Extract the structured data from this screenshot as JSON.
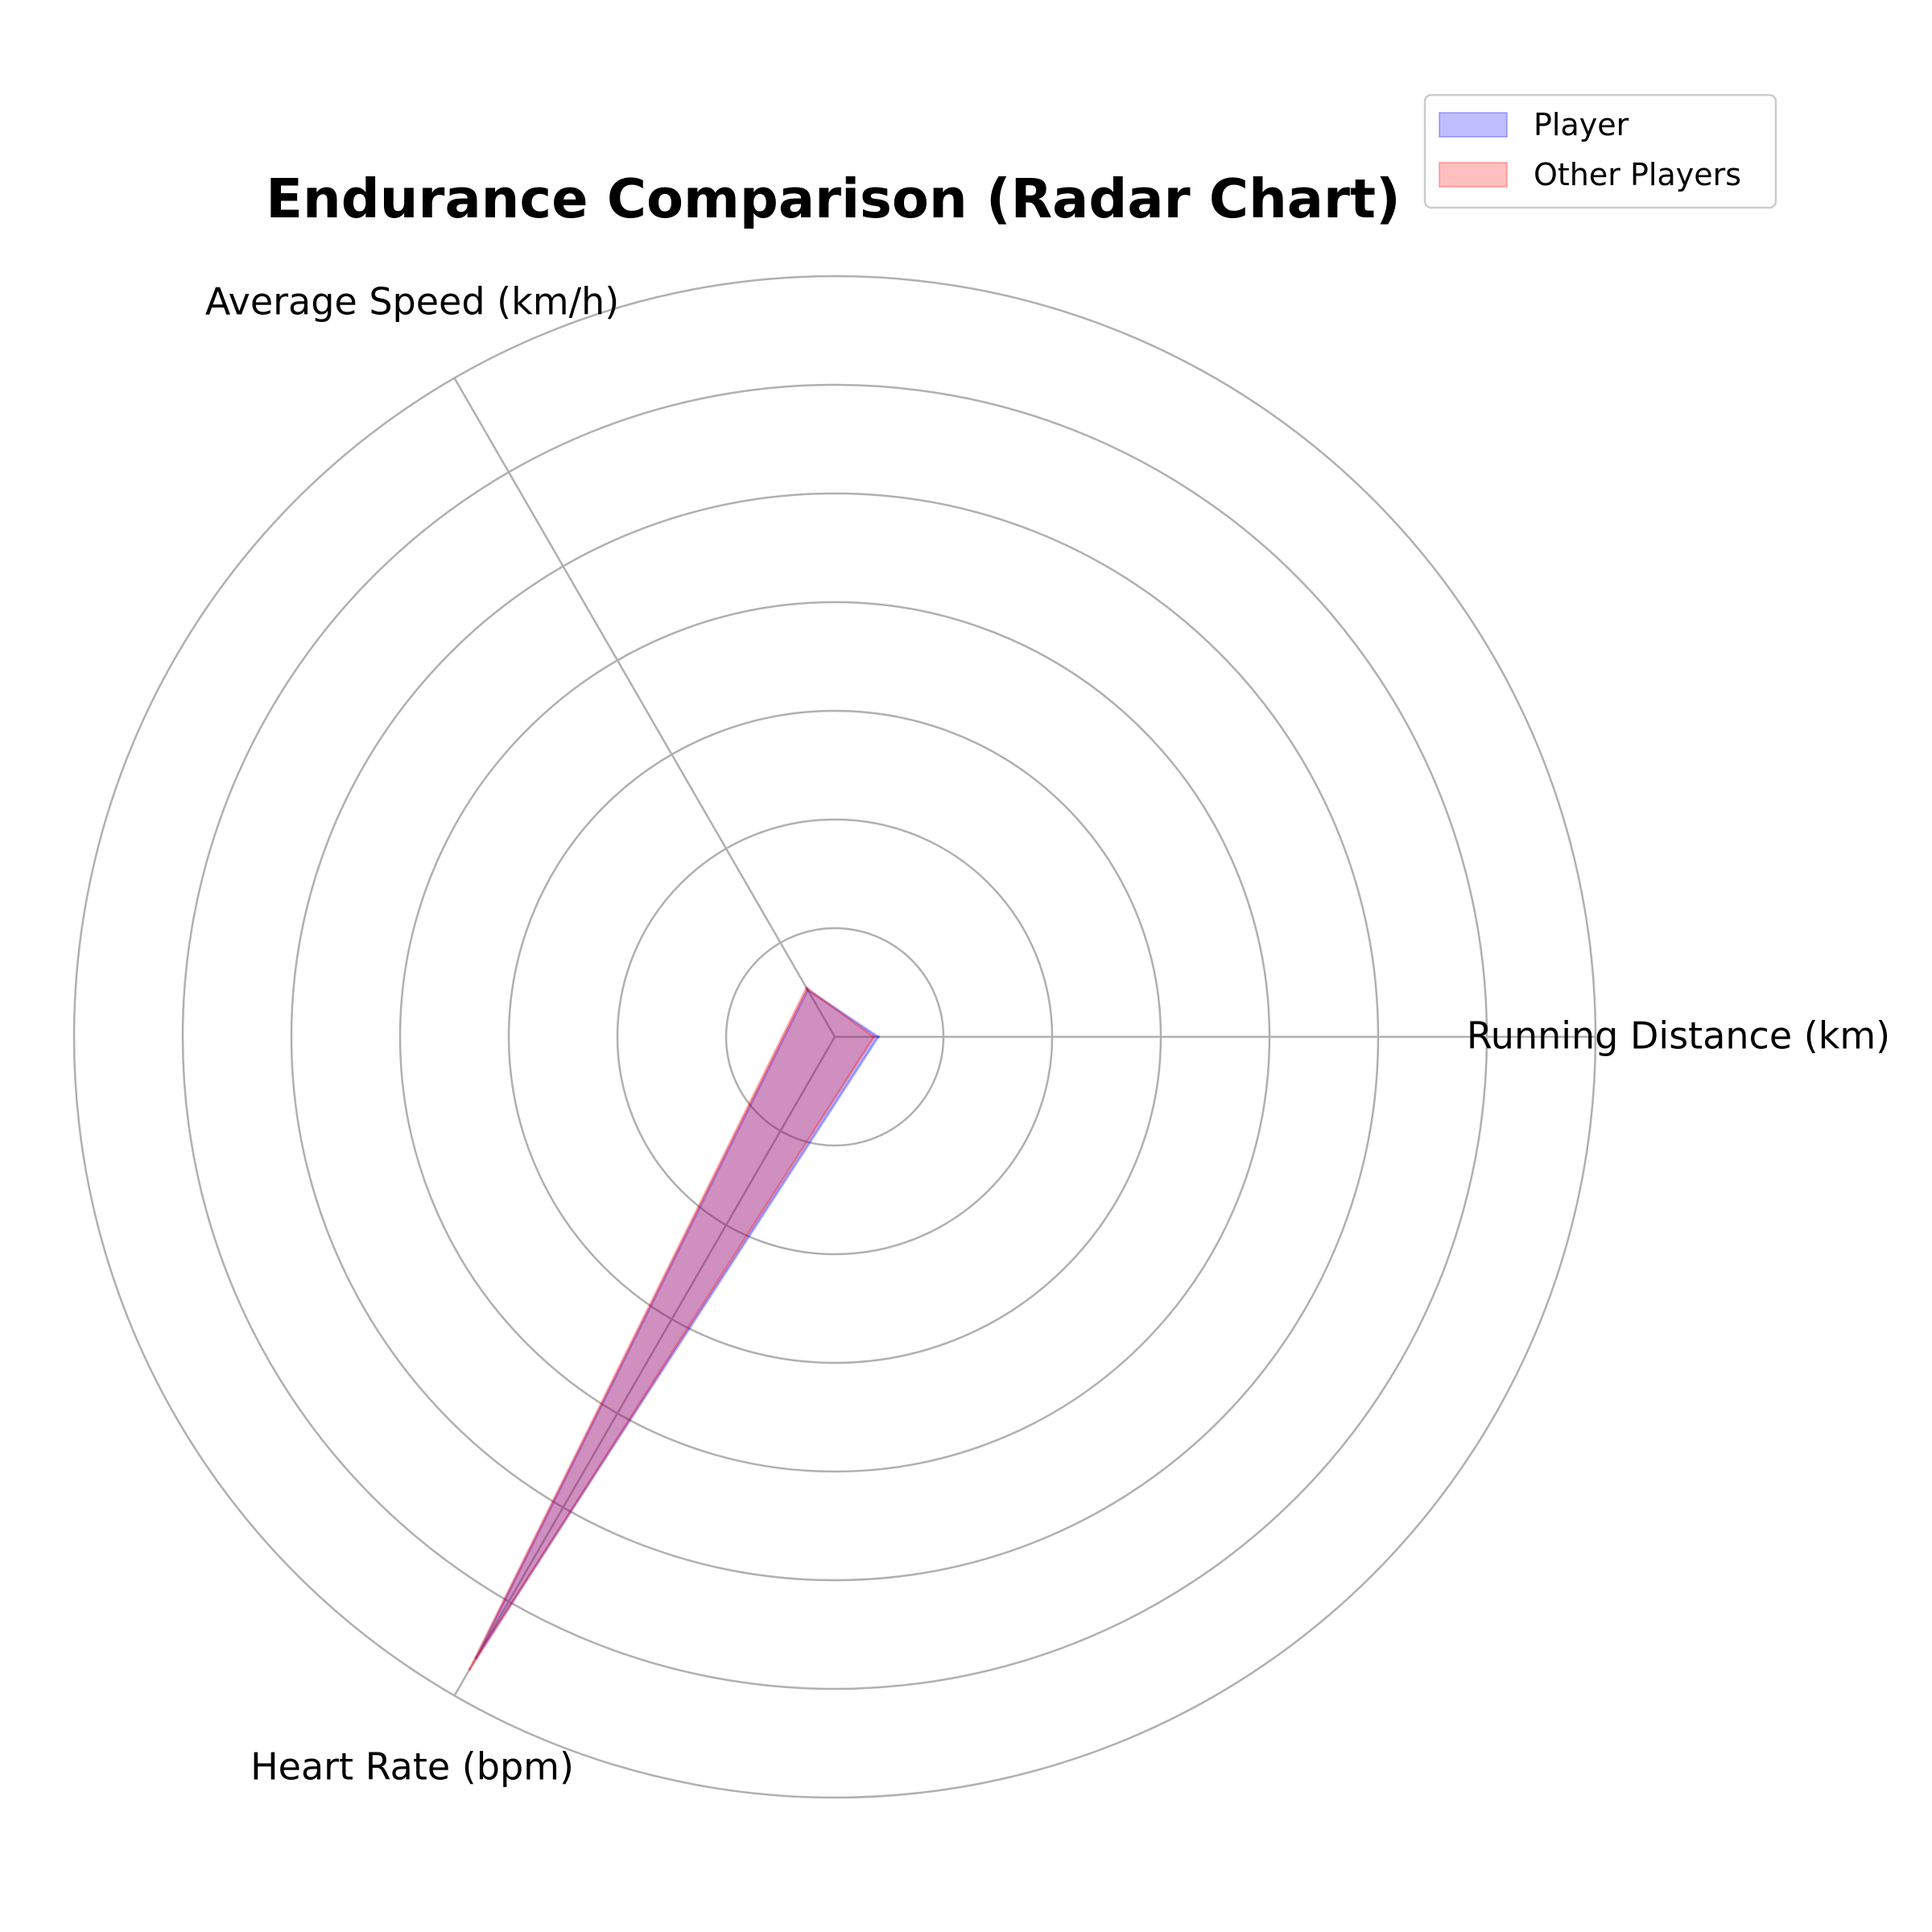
{
  "chart_data": {
    "type": "radar",
    "title": "Endurance Comparison (Radar Chart)",
    "axes": [
      "Running Distance (km)",
      "Average Speed (km/h)",
      "Heart Rate (bpm)"
    ],
    "rlim": [
      0,
      175
    ],
    "ring_values": [
      25,
      50,
      75,
      100,
      125,
      150,
      175
    ],
    "grid": true,
    "tick_labels_shown": false,
    "legend_position": "top-right",
    "series": [
      {
        "name": "Player",
        "values": [
          10.0,
          12.5,
          165
        ],
        "color": "#0000ff"
      },
      {
        "name": "Other Players",
        "values": [
          9.0,
          13.0,
          168
        ],
        "color": "#ff0000"
      }
    ]
  }
}
